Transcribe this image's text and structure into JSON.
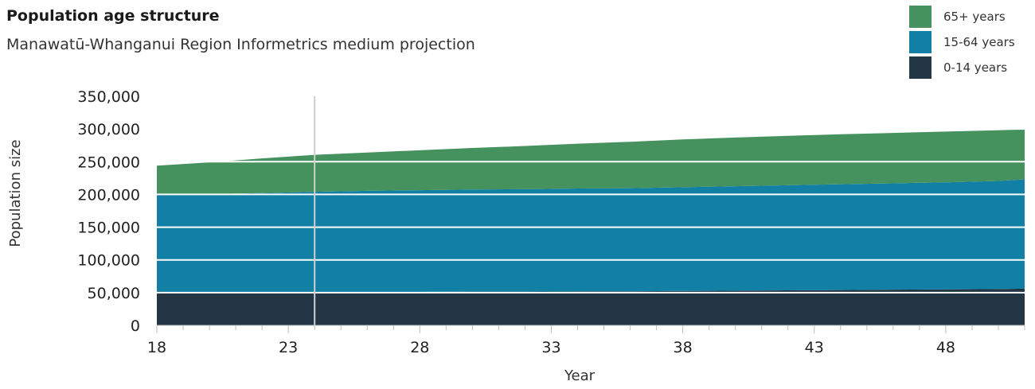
{
  "title": "Population age structure",
  "subtitle": "Manawatū-Whanganui Region Informetrics medium projection",
  "colors": {
    "age_65_plus": "#45925f",
    "age_15_64": "#127fa5",
    "age_0_14": "#233646",
    "grid": "#ffffff",
    "axis": "#bdbdbd",
    "crosshair": "#cfcfcf"
  },
  "legend": [
    {
      "label": "65+ years",
      "color": "#45925f"
    },
    {
      "label": "15-64 years",
      "color": "#127fa5"
    },
    {
      "label": "0-14 years",
      "color": "#233646"
    }
  ],
  "chart_data": {
    "type": "area",
    "stacked": true,
    "title": "Population age structure",
    "subtitle": "Manawatū-Whanganui Region Informetrics medium projection",
    "xlabel": "Year",
    "ylabel": "Population size",
    "x": [
      18,
      20,
      22,
      24,
      26,
      28,
      30,
      32,
      34,
      36,
      38,
      40,
      42,
      44,
      46,
      48,
      50,
      51
    ],
    "xticks": [
      "18",
      "23",
      "28",
      "33",
      "38",
      "43",
      "48"
    ],
    "xtick_values": [
      18,
      23,
      28,
      33,
      38,
      43,
      48
    ],
    "yticks": [
      "0",
      "50,000",
      "100,000",
      "150,000",
      "200,000",
      "250,000",
      "300,000",
      "350,000"
    ],
    "xlim": [
      18,
      51
    ],
    "ylim": [
      0,
      350000
    ],
    "crosshair_x": 24,
    "legend_position": "top-right",
    "series": [
      {
        "name": "0-14 years",
        "values": [
          50000,
          50000,
          50000,
          50500,
          51000,
          51000,
          51500,
          51500,
          52000,
          52000,
          52500,
          53000,
          53500,
          54000,
          54500,
          55000,
          55500,
          56000
        ]
      },
      {
        "name": "15-64 years",
        "values": [
          150000,
          150500,
          152000,
          153500,
          154500,
          155500,
          156000,
          156500,
          157000,
          157500,
          158500,
          159500,
          160500,
          161500,
          162500,
          163500,
          165000,
          167000
        ]
      },
      {
        "name": "65+ years",
        "values": [
          44000,
          48500,
          53000,
          56500,
          58500,
          61000,
          63500,
          66000,
          68500,
          71000,
          73000,
          74500,
          75500,
          76500,
          77000,
          77500,
          77500,
          76500
        ]
      }
    ]
  }
}
